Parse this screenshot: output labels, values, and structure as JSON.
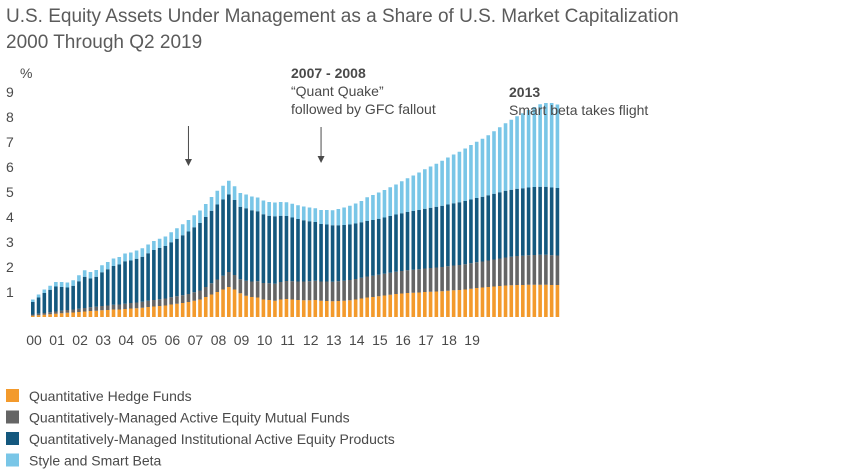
{
  "chart_data": {
    "type": "bar",
    "stacked": true,
    "title": "U.S. Equity Assets Under Management as a Share of U.S. Market Capitalization",
    "subtitle": "2000 Through Q2 2019",
    "ylabel": "%",
    "ylim": [
      0,
      9
    ],
    "yticks": [
      "1",
      "2",
      "3",
      "4",
      "5",
      "6",
      "7",
      "8",
      "9"
    ],
    "xtick_labels": [
      "00",
      "01",
      "02",
      "03",
      "04",
      "05",
      "06",
      "07",
      "08",
      "09",
      "10",
      "11",
      "12",
      "13",
      "14",
      "15",
      "16",
      "17",
      "18",
      "19"
    ],
    "periods_per_year": 4,
    "grid": false,
    "legend_position": "bottom-left",
    "annotations": [
      {
        "key": "a1",
        "period_index": 27,
        "bold": "2007 - 2008",
        "lines": [
          "“Quant Quake”",
          "followed by GFC fallout"
        ]
      },
      {
        "key": "a2",
        "period_index": 50,
        "bold": "2013",
        "lines": [
          "Smart beta takes flight"
        ]
      }
    ],
    "series": [
      {
        "name": "Quantitative Hedge Funds",
        "color": "#f39a2c",
        "values": [
          0.05,
          0.07,
          0.09,
          0.11,
          0.13,
          0.15,
          0.17,
          0.18,
          0.2,
          0.22,
          0.24,
          0.25,
          0.27,
          0.28,
          0.3,
          0.3,
          0.32,
          0.34,
          0.35,
          0.37,
          0.4,
          0.42,
          0.44,
          0.46,
          0.5,
          0.53,
          0.56,
          0.6,
          0.65,
          0.7,
          0.8,
          0.9,
          1.0,
          1.1,
          1.2,
          1.1,
          0.95,
          0.85,
          0.8,
          0.78,
          0.7,
          0.68,
          0.65,
          0.7,
          0.72,
          0.7,
          0.68,
          0.67,
          0.67,
          0.68,
          0.65,
          0.64,
          0.63,
          0.64,
          0.65,
          0.67,
          0.7,
          0.74,
          0.78,
          0.8,
          0.83,
          0.86,
          0.89,
          0.92,
          0.94,
          0.96,
          0.97,
          0.98,
          1.0,
          1.01,
          1.02,
          1.03,
          1.05,
          1.07,
          1.08,
          1.1,
          1.13,
          1.16,
          1.18,
          1.2,
          1.22,
          1.24,
          1.26,
          1.27,
          1.28,
          1.28,
          1.29,
          1.29,
          1.29,
          1.29,
          1.28,
          1.28
        ]
      },
      {
        "name": "Quantitatively-Managed Active Equity Mutual Funds",
        "color": "#656565",
        "values": [
          0.05,
          0.06,
          0.07,
          0.08,
          0.09,
          0.1,
          0.11,
          0.12,
          0.13,
          0.14,
          0.15,
          0.16,
          0.17,
          0.18,
          0.19,
          0.2,
          0.21,
          0.22,
          0.23,
          0.24,
          0.25,
          0.26,
          0.27,
          0.28,
          0.29,
          0.3,
          0.31,
          0.32,
          0.34,
          0.36,
          0.4,
          0.45,
          0.5,
          0.55,
          0.6,
          0.58,
          0.56,
          0.6,
          0.62,
          0.65,
          0.66,
          0.67,
          0.68,
          0.7,
          0.72,
          0.73,
          0.74,
          0.75,
          0.76,
          0.77,
          0.77,
          0.78,
          0.78,
          0.79,
          0.8,
          0.81,
          0.82,
          0.83,
          0.84,
          0.85,
          0.86,
          0.87,
          0.88,
          0.89,
          0.9,
          0.91,
          0.92,
          0.93,
          0.94,
          0.95,
          0.96,
          0.97,
          0.98,
          0.99,
          1.0,
          1.01,
          1.02,
          1.03,
          1.04,
          1.06,
          1.08,
          1.1,
          1.12,
          1.14,
          1.16,
          1.17,
          1.18,
          1.19,
          1.2,
          1.2,
          1.19,
          1.18
        ]
      },
      {
        "name": "Quantitatively-Managed Institutional Active Equity Products",
        "color": "#14587e",
        "values": [
          0.5,
          0.65,
          0.8,
          0.9,
          1.0,
          0.95,
          0.9,
          0.95,
          1.1,
          1.25,
          1.15,
          1.2,
          1.35,
          1.45,
          1.55,
          1.6,
          1.7,
          1.7,
          1.75,
          1.8,
          1.9,
          2.0,
          2.05,
          2.1,
          2.2,
          2.3,
          2.4,
          2.5,
          2.6,
          2.7,
          2.8,
          2.9,
          3.0,
          3.05,
          3.1,
          3.0,
          2.9,
          2.9,
          2.85,
          2.8,
          2.75,
          2.7,
          2.7,
          2.65,
          2.6,
          2.55,
          2.5,
          2.45,
          2.4,
          2.35,
          2.3,
          2.28,
          2.26,
          2.24,
          2.23,
          2.22,
          2.22,
          2.22,
          2.22,
          2.23,
          2.24,
          2.25,
          2.27,
          2.29,
          2.31,
          2.33,
          2.35,
          2.37,
          2.39,
          2.41,
          2.43,
          2.45,
          2.47,
          2.49,
          2.51,
          2.53,
          2.55,
          2.57,
          2.59,
          2.61,
          2.63,
          2.65,
          2.67,
          2.68,
          2.69,
          2.7,
          2.71,
          2.72,
          2.72,
          2.72,
          2.71,
          2.7
        ]
      },
      {
        "name": "Style and Smart Beta",
        "color": "#79c6e7",
        "values": [
          0.1,
          0.12,
          0.14,
          0.16,
          0.18,
          0.2,
          0.2,
          0.22,
          0.24,
          0.26,
          0.26,
          0.27,
          0.28,
          0.29,
          0.3,
          0.3,
          0.31,
          0.32,
          0.33,
          0.34,
          0.35,
          0.36,
          0.37,
          0.38,
          0.4,
          0.42,
          0.44,
          0.46,
          0.48,
          0.5,
          0.52,
          0.55,
          0.55,
          0.55,
          0.55,
          0.55,
          0.55,
          0.55,
          0.55,
          0.55,
          0.55,
          0.55,
          0.55,
          0.55,
          0.55,
          0.55,
          0.55,
          0.55,
          0.55,
          0.55,
          0.56,
          0.58,
          0.6,
          0.65,
          0.7,
          0.75,
          0.8,
          0.85,
          0.95,
          1.0,
          1.05,
          1.1,
          1.15,
          1.2,
          1.28,
          1.35,
          1.42,
          1.5,
          1.58,
          1.65,
          1.72,
          1.8,
          1.88,
          1.95,
          2.02,
          2.1,
          2.18,
          2.25,
          2.32,
          2.4,
          2.5,
          2.6,
          2.7,
          2.8,
          2.9,
          3.0,
          3.1,
          3.2,
          3.3,
          3.35,
          3.38,
          3.34
        ]
      }
    ]
  }
}
